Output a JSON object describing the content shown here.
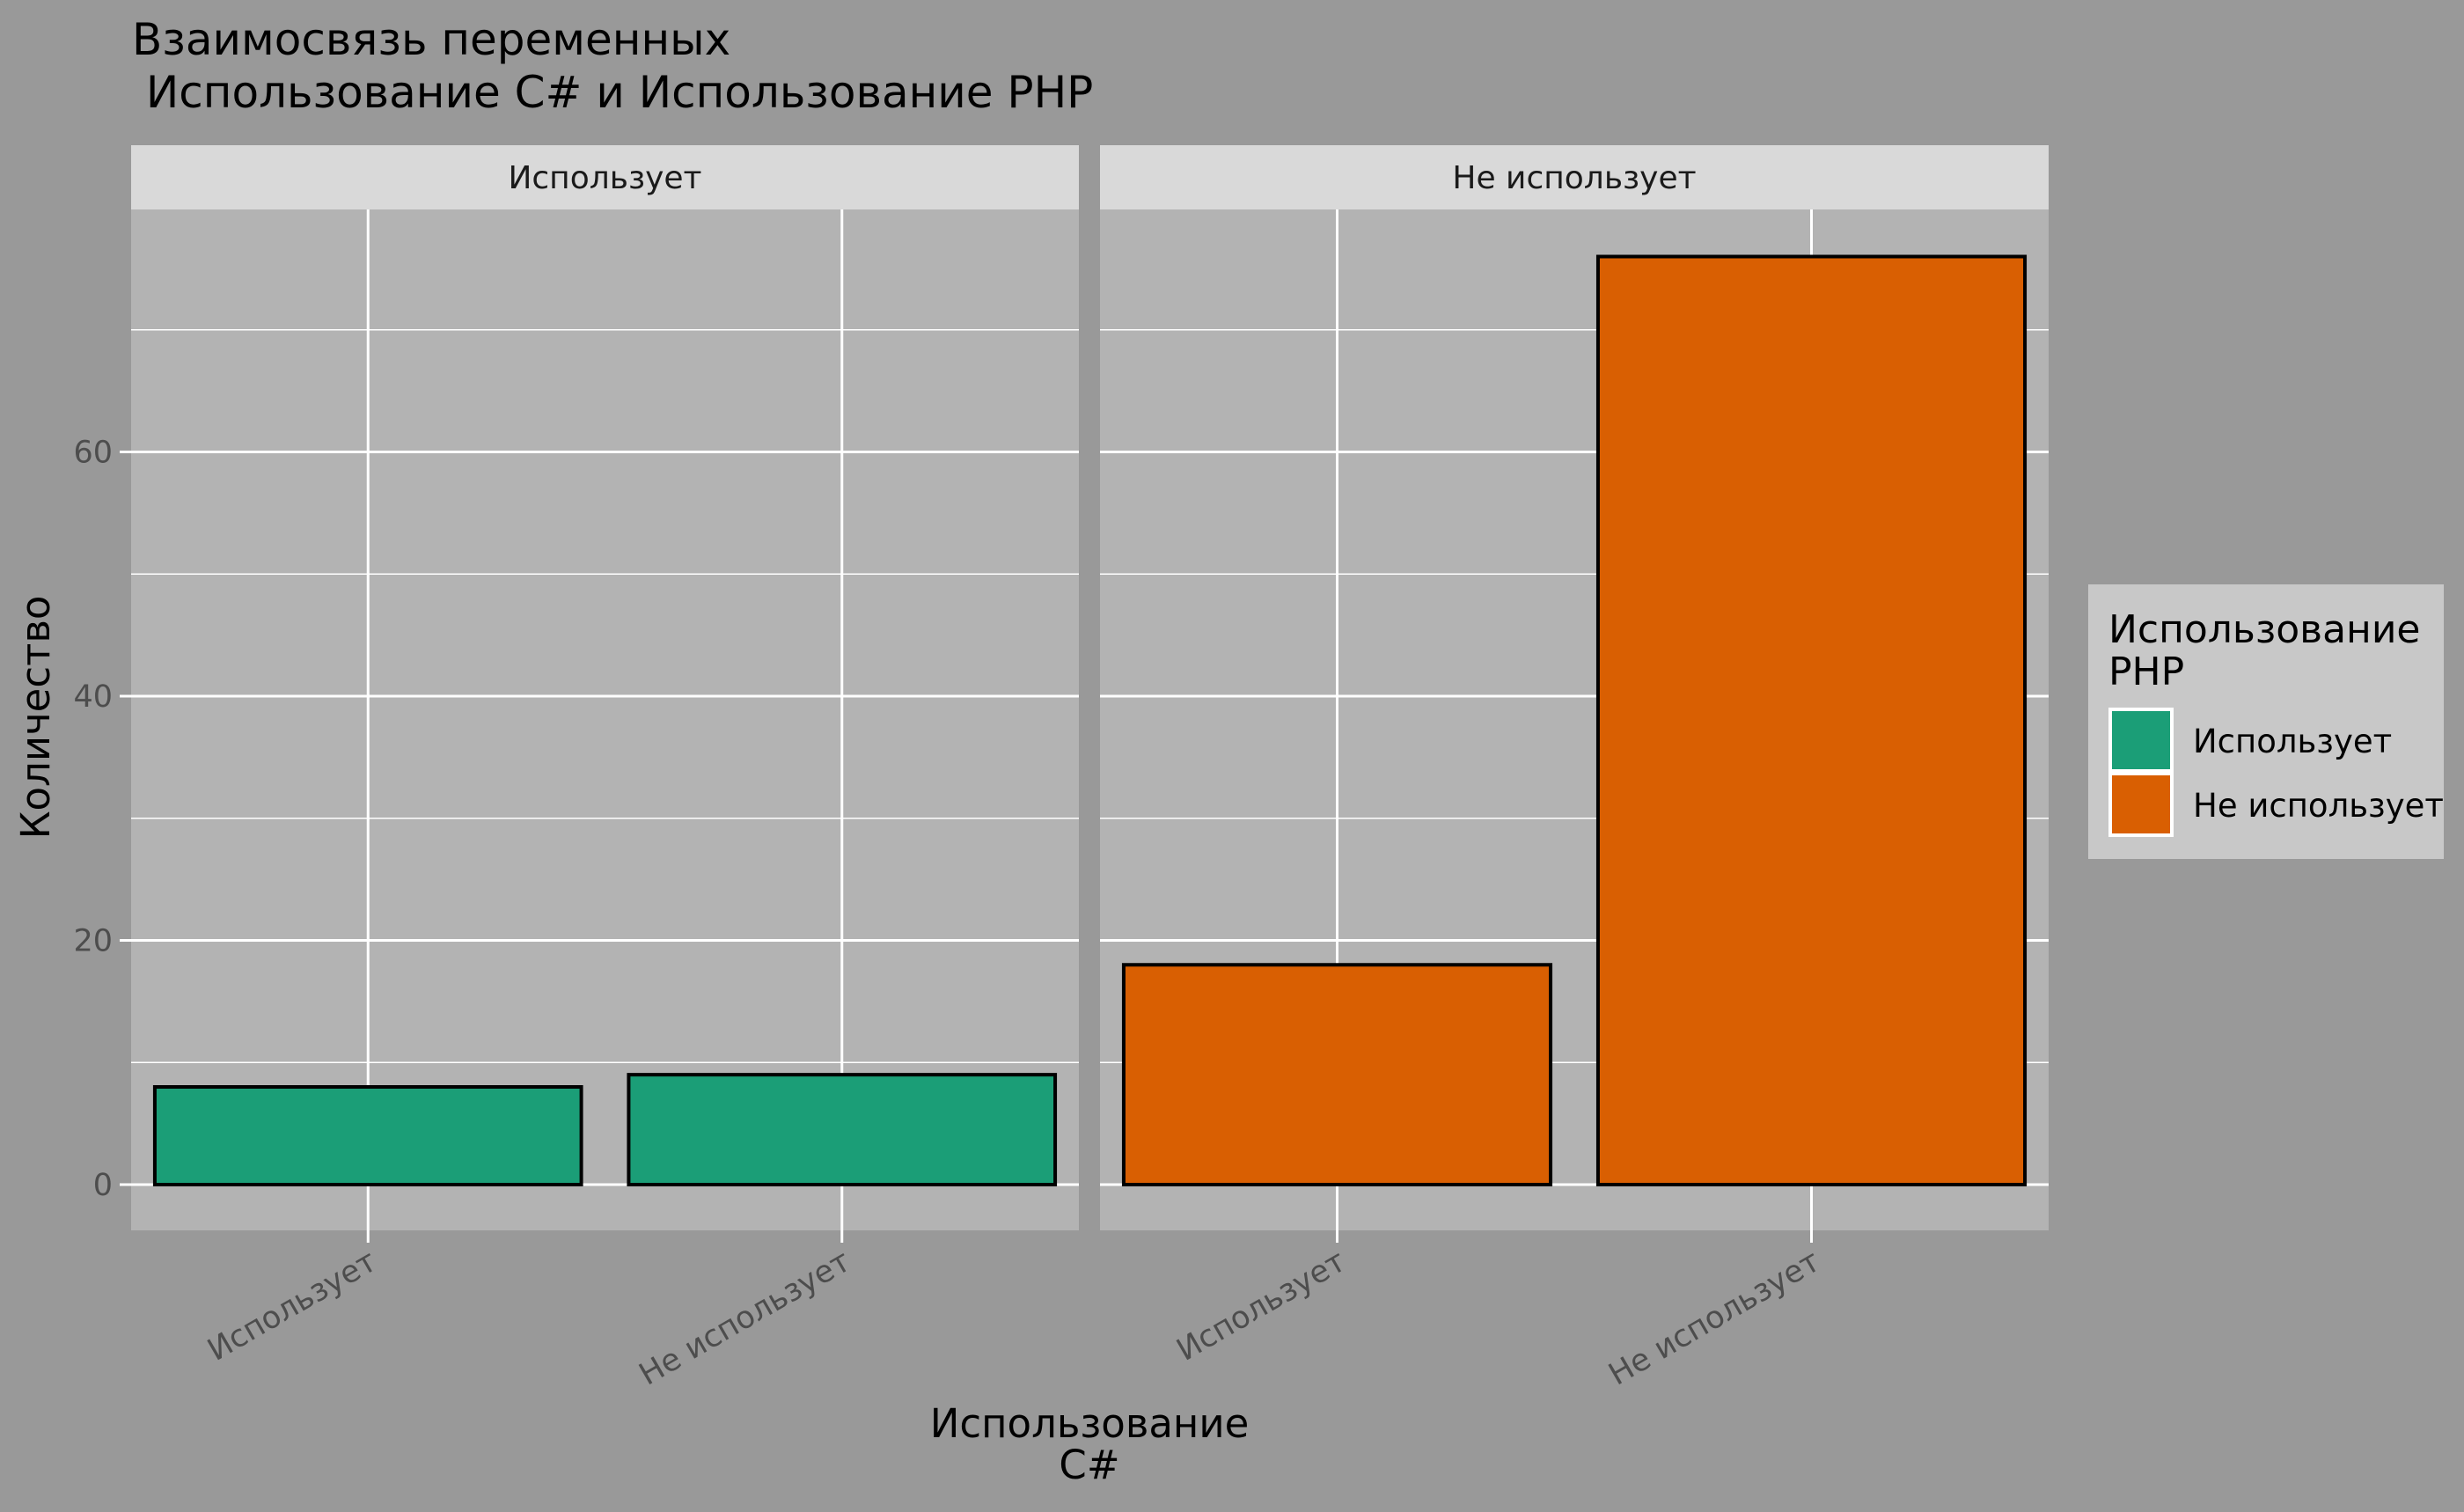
{
  "chart_data": {
    "type": "bar",
    "title_lines": [
      "Взаимосвязь переменных",
      " Использование C# и Использование PHP"
    ],
    "xlabel_lines": [
      "Использование",
      "C#"
    ],
    "ylabel": "Количество",
    "ylim": [
      0,
      80
    ],
    "y_ticks": [
      0,
      20,
      40,
      60
    ],
    "grid": true,
    "legend": {
      "title_lines": [
        "Использование",
        "PHP"
      ],
      "position": "right",
      "items": [
        {
          "label": "Использует",
          "color": "#1B9E77"
        },
        {
          "label": "Не использует",
          "color": "#D95F02"
        }
      ]
    },
    "facets": [
      {
        "label": "Использует",
        "categories": [
          "Использует",
          "Не использует"
        ],
        "values": [
          8,
          9
        ],
        "fill": [
          "#1B9E77",
          "#1B9E77"
        ]
      },
      {
        "label": "Не использует",
        "categories": [
          "Использует",
          "Не использует"
        ],
        "values": [
          18,
          76
        ],
        "fill": [
          "#D95F02",
          "#D95F02"
        ]
      }
    ]
  }
}
